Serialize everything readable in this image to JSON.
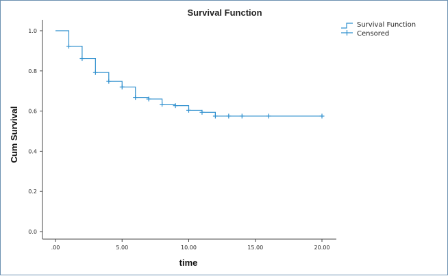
{
  "chart_data": {
    "type": "line",
    "step": true,
    "title": "Survival Function",
    "xlabel": "time",
    "ylabel": "Cum Survival",
    "xlim": [
      0,
      20
    ],
    "ylim": [
      0,
      1.0
    ],
    "x_ticks": [
      0,
      5,
      10,
      15,
      20
    ],
    "x_tick_labels": [
      ".00",
      "5.00",
      "10.00",
      "15.00",
      "20.00"
    ],
    "y_ticks": [
      0,
      0.2,
      0.4,
      0.6,
      0.8,
      1.0
    ],
    "y_tick_labels": [
      "0.0",
      "0.2",
      "0.4",
      "0.6",
      "0.8",
      "1.0"
    ],
    "legend_position": "top-right",
    "legend": [
      "Survival Function",
      "Censored"
    ],
    "series": [
      {
        "name": "Survival Function",
        "color": "#2e8fce",
        "x": [
          0,
          1,
          2,
          3,
          4,
          5,
          6,
          7,
          8,
          9,
          10,
          11,
          12,
          20
        ],
        "y": [
          1.0,
          0.923,
          0.862,
          0.792,
          0.748,
          0.72,
          0.668,
          0.66,
          0.634,
          0.627,
          0.604,
          0.594,
          0.575,
          0.575
        ]
      },
      {
        "name": "Censored",
        "color": "#2e8fce",
        "x": [
          1,
          2,
          3,
          4,
          5,
          6,
          7,
          8,
          9,
          10,
          11,
          12,
          13,
          14,
          16,
          20
        ],
        "y": [
          0.923,
          0.862,
          0.792,
          0.748,
          0.72,
          0.668,
          0.66,
          0.634,
          0.627,
          0.604,
          0.594,
          0.575,
          0.575,
          0.575,
          0.575,
          0.575
        ]
      }
    ]
  }
}
